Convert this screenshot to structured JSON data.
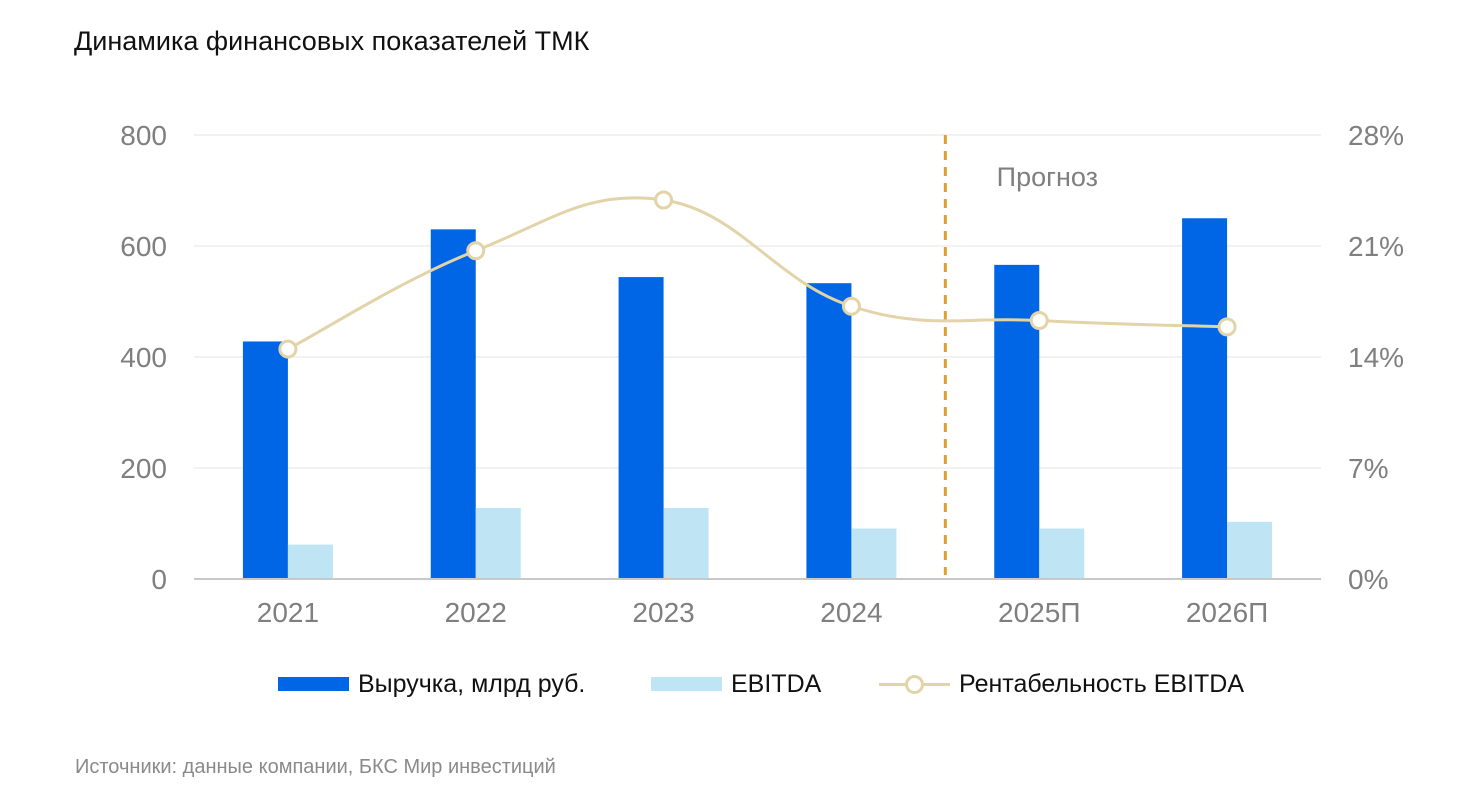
{
  "title": "Динамика финансовых показателей ТМК",
  "source": "Источники: данные компании, БКС Мир инвестиций",
  "forecast_label": "Прогноз",
  "colors": {
    "revenue": "#0066e6",
    "ebitda": "#bfe4f4",
    "margin_line": "#e2d3a8",
    "forecast_divider": "#e0a030",
    "grid": "#e6e6e6",
    "axis": "#c8c8c8"
  },
  "legend": {
    "revenue": "Выручка, млрд руб.",
    "ebitda": "EBITDA",
    "margin": "Рентабельность EBITDA"
  },
  "chart_data": {
    "type": "bar",
    "categories": [
      "2021",
      "2022",
      "2023",
      "2024",
      "2025П",
      "2026П"
    ],
    "series": [
      {
        "name": "Выручка, млрд руб.",
        "type": "bar",
        "axis": "left",
        "values": [
          428,
          630,
          544,
          533,
          566,
          650
        ]
      },
      {
        "name": "EBITDA",
        "type": "bar",
        "axis": "left",
        "values": [
          62,
          128,
          128,
          91,
          91,
          103
        ]
      },
      {
        "name": "Рентабельность EBITDA",
        "type": "line",
        "axis": "right",
        "values": [
          14.5,
          20.7,
          23.9,
          17.2,
          16.3,
          15.9
        ]
      }
    ],
    "y_left": {
      "ylim": [
        0,
        800
      ],
      "ticks": [
        "0",
        "200",
        "400",
        "600",
        "800"
      ]
    },
    "y_right": {
      "ylim": [
        0,
        28
      ],
      "ticks": [
        "0%",
        "7%",
        "14%",
        "21%",
        "28%"
      ]
    },
    "forecast_start_after": "2024",
    "grid": true,
    "legend_position": "bottom"
  }
}
